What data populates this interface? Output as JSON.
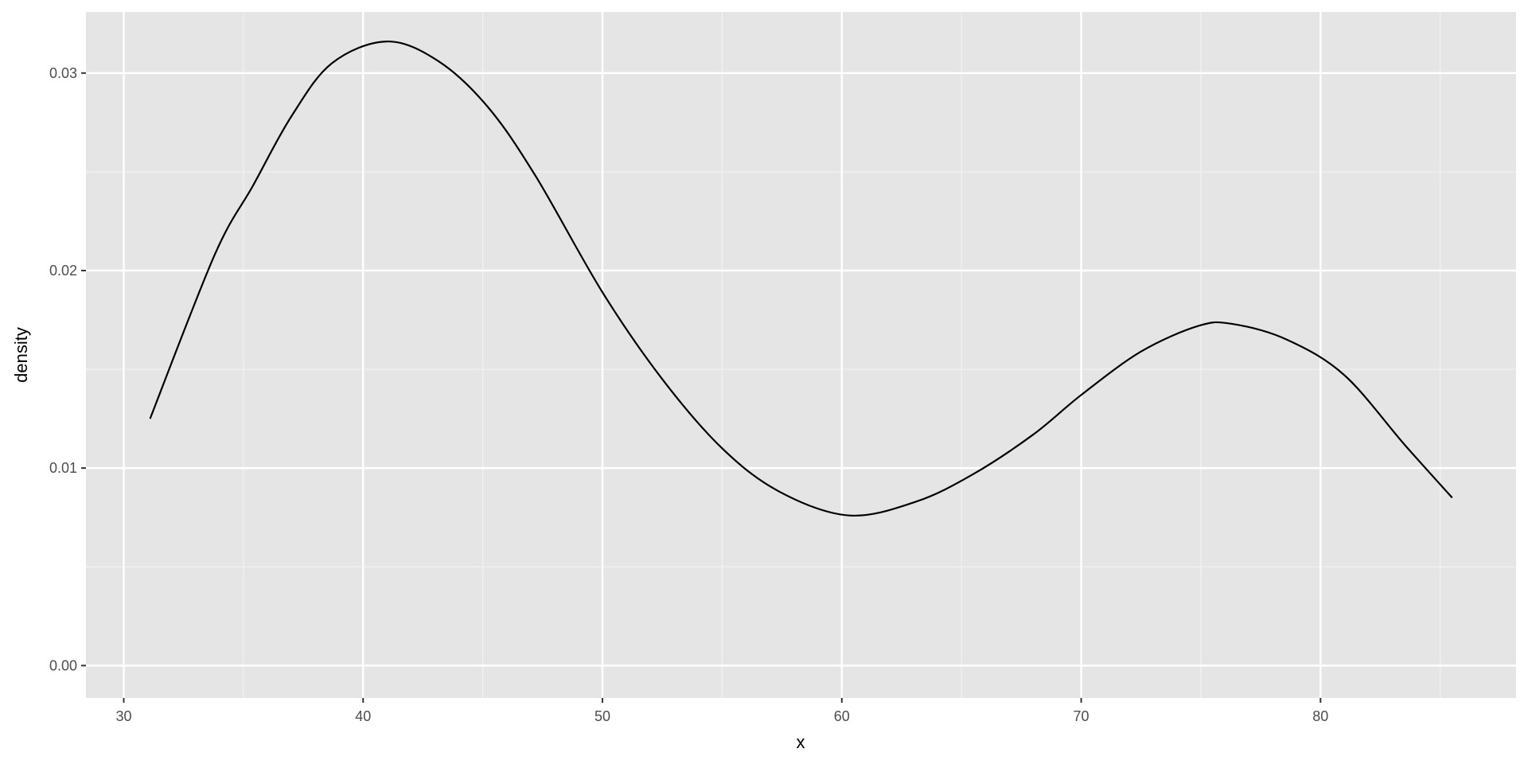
{
  "chart_data": {
    "type": "line",
    "title": "",
    "xlabel": "x",
    "ylabel": "density",
    "xlim": [
      28.4,
      88.3
    ],
    "ylim": [
      -0.0016,
      0.0331
    ],
    "x_ticks": [
      30,
      40,
      50,
      60,
      70,
      80
    ],
    "x_tick_labels": [
      "30",
      "40",
      "50",
      "60",
      "70",
      "80"
    ],
    "y_ticks": [
      0,
      0.01,
      0.02,
      0.03
    ],
    "y_tick_labels": [
      "0.00",
      "0.01",
      "0.02",
      "0.03"
    ],
    "grid": true,
    "background": "#e5e5e5",
    "line_color": "#000000",
    "x": [
      31.1,
      33.8,
      35.4,
      37.0,
      38.7,
      41.0,
      43.15,
      45.2,
      47.2,
      50.0,
      52.5,
      55.0,
      57.4,
      60.3,
      63.1,
      65.5,
      68.0,
      70.0,
      72.5,
      74.9,
      76.3,
      78.6,
      81.0,
      83.5,
      85.5
    ],
    "y": [
      0.0125,
      0.0208,
      0.0243,
      0.0278,
      0.0305,
      0.0316,
      0.0306,
      0.0283,
      0.0248,
      0.0189,
      0.0145,
      0.011,
      0.0088,
      0.0076,
      0.0083,
      0.0097,
      0.0117,
      0.0137,
      0.0159,
      0.0172,
      0.0173,
      0.0165,
      0.0147,
      0.0112,
      0.0085
    ]
  }
}
